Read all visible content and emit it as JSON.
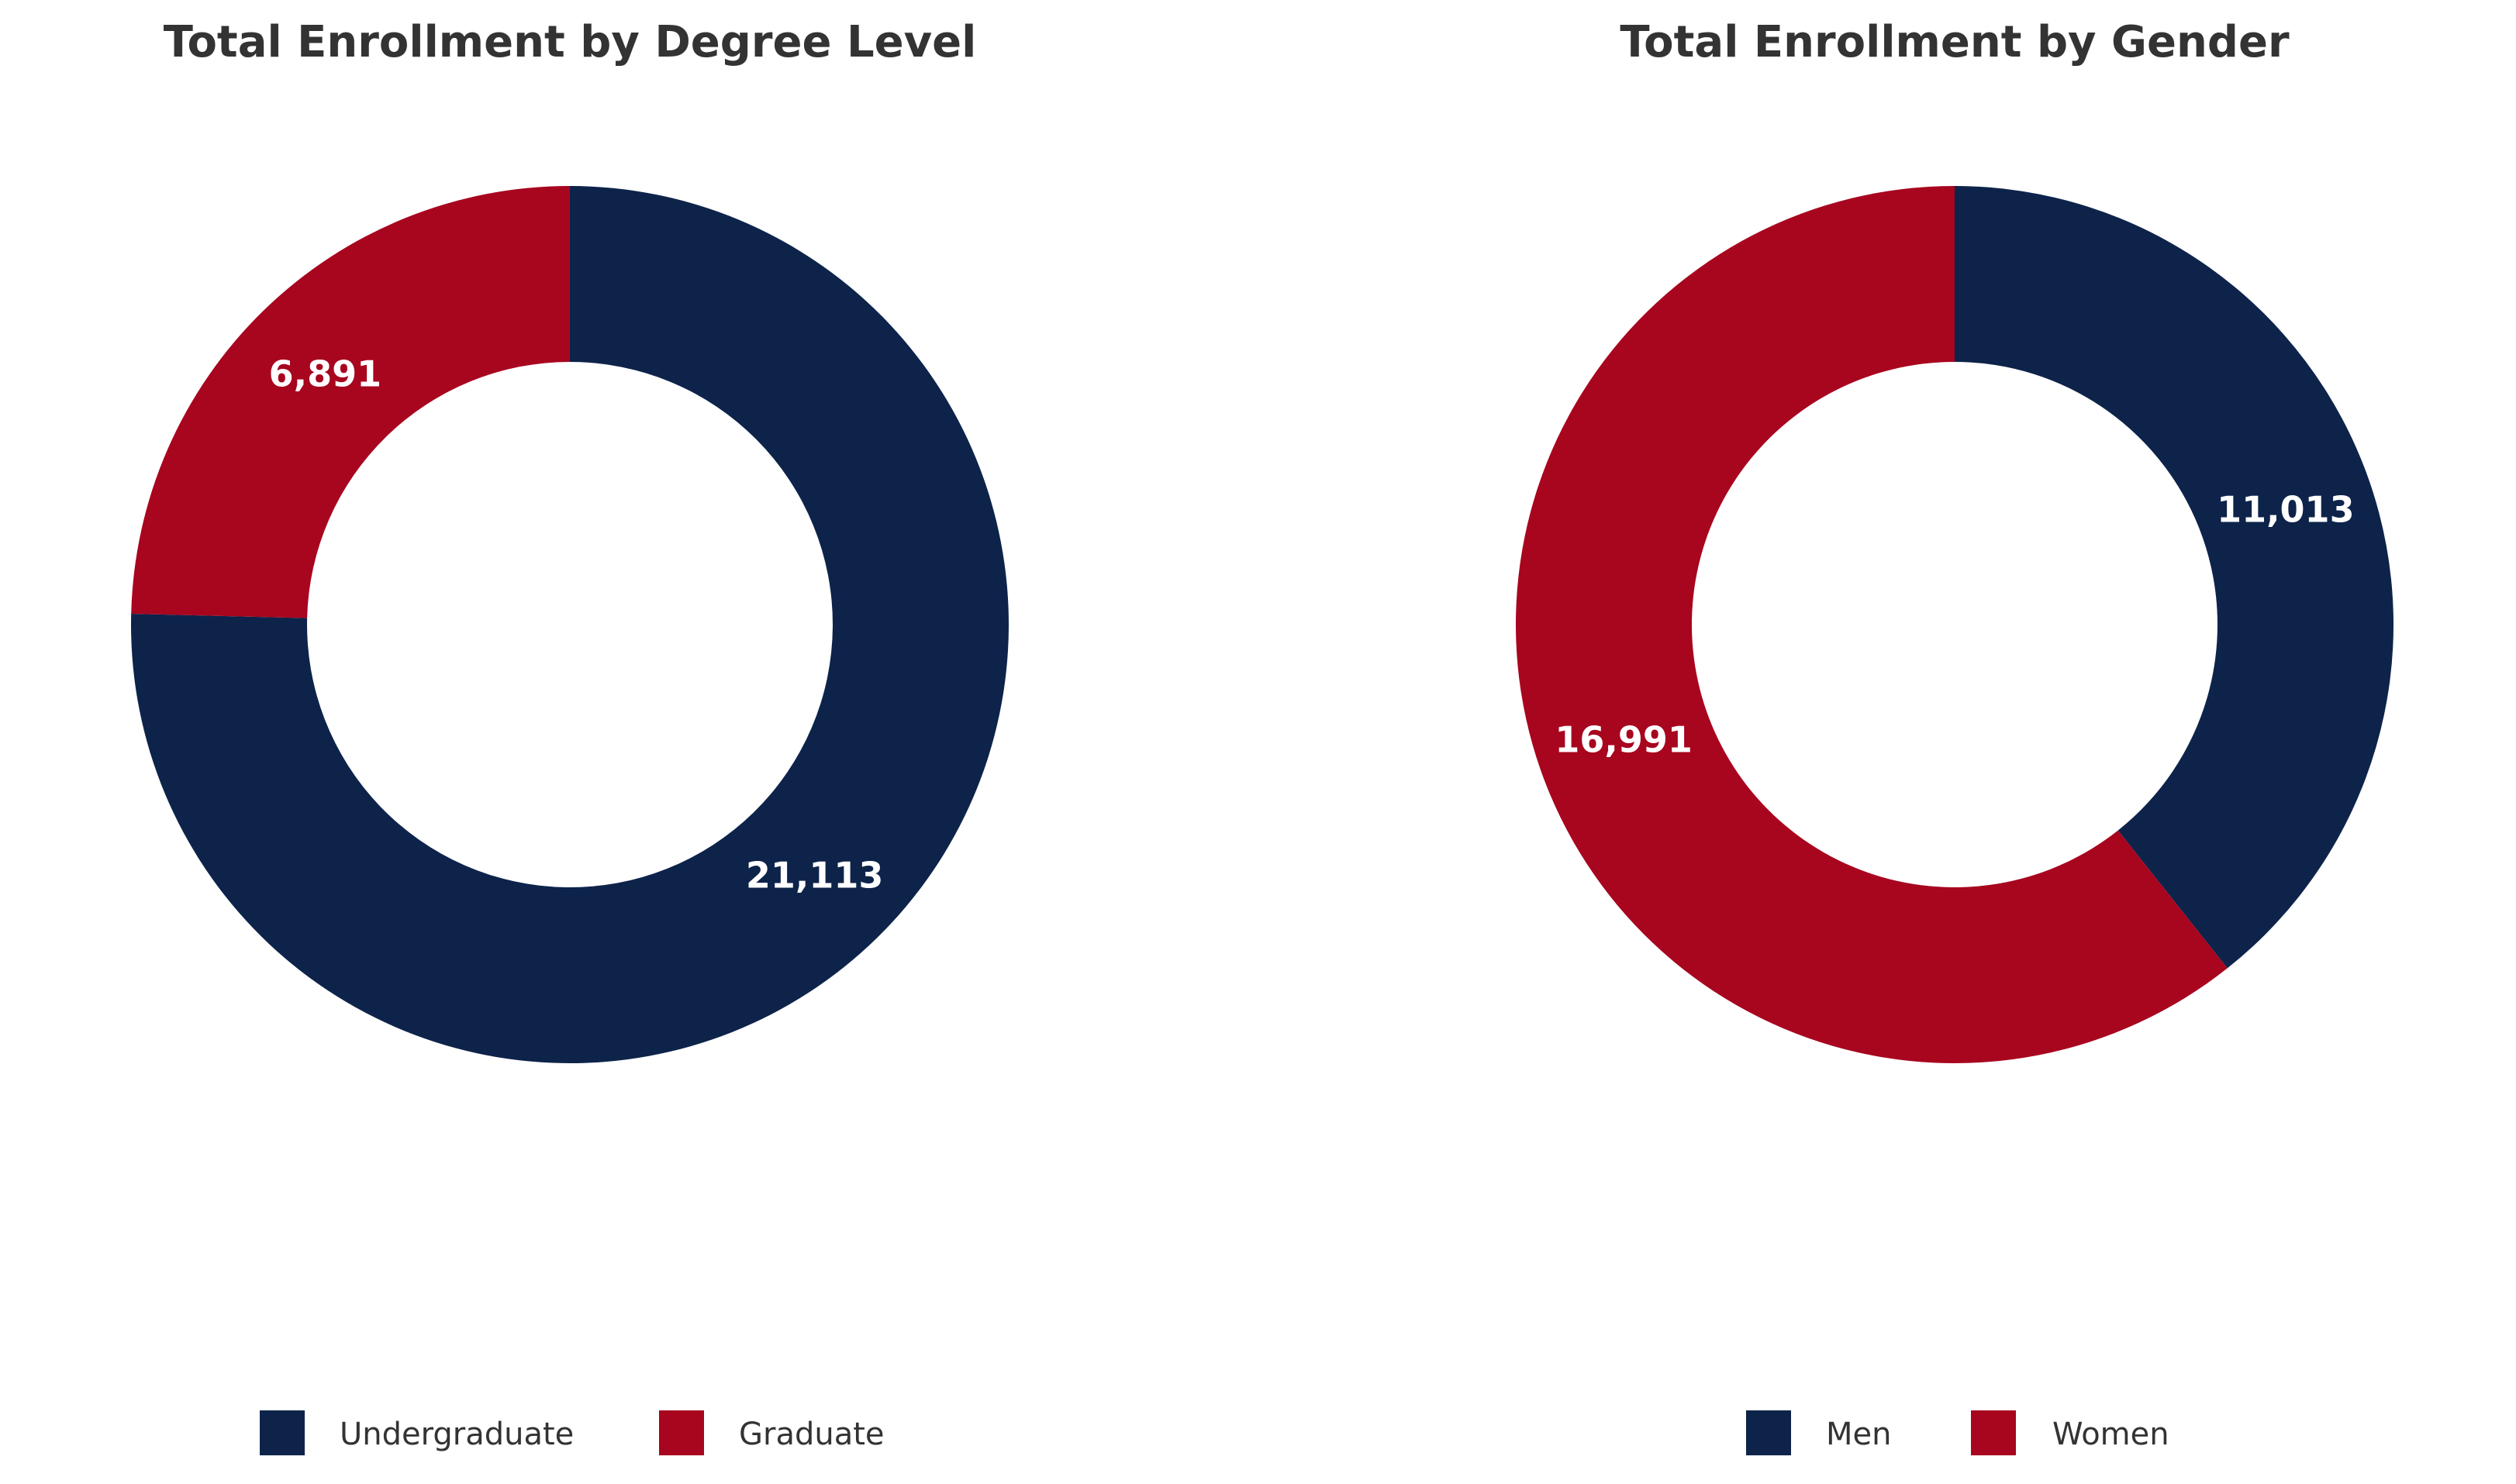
{
  "chart_data": [
    {
      "type": "pie",
      "variant": "donut",
      "title": "Total Enrollment by Degree Level",
      "categories": [
        "Undergraduate",
        "Graduate"
      ],
      "values": [
        21113,
        6891
      ],
      "value_labels": [
        "21,113",
        "6,891"
      ],
      "colors": [
        "#0d234a",
        "#a8051f"
      ],
      "legend_position": "bottom"
    },
    {
      "type": "pie",
      "variant": "donut",
      "title": "Total Enrollment by Gender",
      "categories": [
        "Men",
        "Women"
      ],
      "values": [
        11013,
        16991
      ],
      "value_labels": [
        "11,013",
        "16,991"
      ],
      "colors": [
        "#0d234a",
        "#a8051f"
      ],
      "legend_position": "bottom"
    }
  ]
}
